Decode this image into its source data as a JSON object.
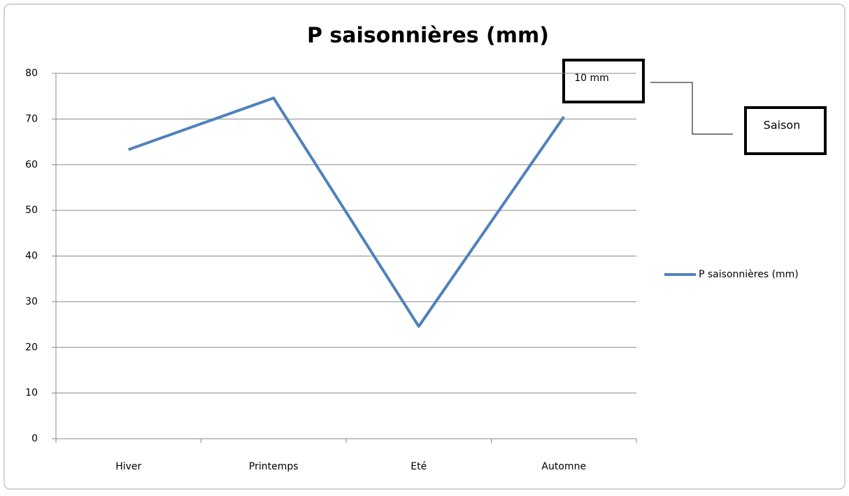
{
  "chart_data": {
    "type": "line",
    "title": "P saisonnières (mm)",
    "categories": [
      "Hiver",
      "Printemps",
      "Eté",
      "Automne"
    ],
    "series": [
      {
        "name": "P saisonnières (mm)",
        "color": "#4f81bd",
        "values": [
          63.3,
          74.6,
          24.6,
          70.5
        ]
      }
    ],
    "ylim": [
      0,
      80
    ],
    "yticks": [
      0,
      10,
      20,
      30,
      40,
      50,
      60,
      70,
      80
    ],
    "grid": true,
    "legend": "right",
    "annotations": [
      "10 mm",
      "Saison"
    ]
  }
}
